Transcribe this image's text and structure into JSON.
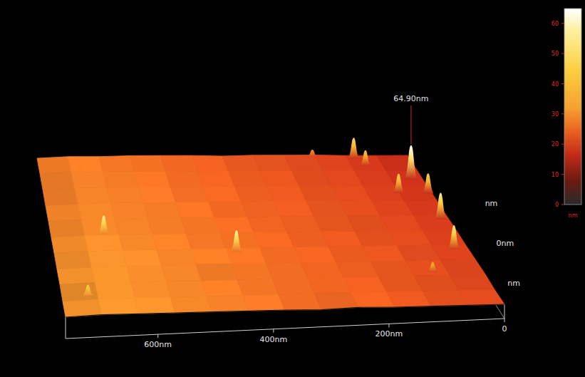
{
  "chart_data": {
    "type": "surface",
    "xlim": [
      0,
      760
    ],
    "xticks": [
      0,
      {
        "value": 200,
        "label": "200nm"
      },
      {
        "value": 400,
        "label": "400nm"
      },
      {
        "value": 600,
        "label": "600nm"
      }
    ],
    "ylim": [
      0,
      760
    ],
    "yticks": [
      {
        "value": 200,
        "label": "nm"
      },
      {
        "value": 400,
        "label": "0nm"
      },
      {
        "value": 600,
        "label": "nm"
      }
    ],
    "surface": {
      "x": [
        0,
        63,
        127,
        190,
        253,
        317,
        380,
        443,
        507,
        570,
        633,
        697,
        760
      ],
      "y": [
        0,
        76,
        152,
        228,
        304,
        380,
        456,
        532,
        608,
        684,
        760
      ],
      "z": [
        [
          20,
          21,
          22,
          23,
          25,
          24,
          26,
          27,
          28,
          29,
          30,
          31,
          30
        ],
        [
          19,
          21,
          21,
          23,
          24,
          25,
          25,
          27,
          28,
          28,
          30,
          30,
          29
        ],
        [
          20,
          20,
          22,
          22,
          24,
          24,
          26,
          26,
          27,
          29,
          29,
          31,
          30
        ],
        [
          19,
          20,
          21,
          23,
          23,
          25,
          25,
          27,
          28,
          28,
          30,
          30,
          29
        ],
        [
          18,
          20,
          21,
          22,
          23,
          24,
          25,
          26,
          27,
          28,
          29,
          30,
          29
        ],
        [
          18,
          19,
          21,
          21,
          23,
          23,
          25,
          26,
          26,
          28,
          28,
          29,
          28
        ],
        [
          17,
          19,
          20,
          22,
          22,
          24,
          24,
          25,
          27,
          27,
          28,
          29,
          28
        ],
        [
          17,
          18,
          20,
          21,
          22,
          23,
          24,
          25,
          26,
          27,
          28,
          28,
          27
        ],
        [
          16,
          18,
          19,
          21,
          21,
          23,
          23,
          25,
          25,
          27,
          27,
          28,
          27
        ],
        [
          16,
          17,
          19,
          20,
          21,
          22,
          23,
          24,
          25,
          26,
          27,
          28,
          27
        ],
        [
          16,
          17,
          18,
          20,
          21,
          22,
          22,
          24,
          25,
          26,
          26,
          27,
          26
        ]
      ]
    },
    "peaks": [
      {
        "x": 114,
        "y": 745,
        "z": 47
      },
      {
        "x": 99,
        "y": 707,
        "z": 40
      },
      {
        "x": 24,
        "y": 638,
        "z": 64.9
      },
      {
        "x": 65,
        "y": 570,
        "z": 45
      },
      {
        "x": 8,
        "y": 567,
        "z": 45
      },
      {
        "x": 16,
        "y": 435,
        "z": 55
      },
      {
        "x": 27,
        "y": 281,
        "z": 53
      },
      {
        "x": 90,
        "y": 169,
        "z": 35
      },
      {
        "x": 661,
        "y": 385,
        "z": 55
      },
      {
        "x": 426,
        "y": 285,
        "z": 57
      },
      {
        "x": 197,
        "y": 752,
        "z": 30
      },
      {
        "x": 714,
        "y": 97,
        "z": 45
      }
    ],
    "annotations": [
      {
        "text": "64.90nm",
        "peak": 2
      }
    ],
    "colorbar": {
      "range": [
        0,
        64.9
      ],
      "ticks": [
        0,
        10,
        20,
        30,
        40,
        50,
        60
      ],
      "label": "nm"
    }
  }
}
